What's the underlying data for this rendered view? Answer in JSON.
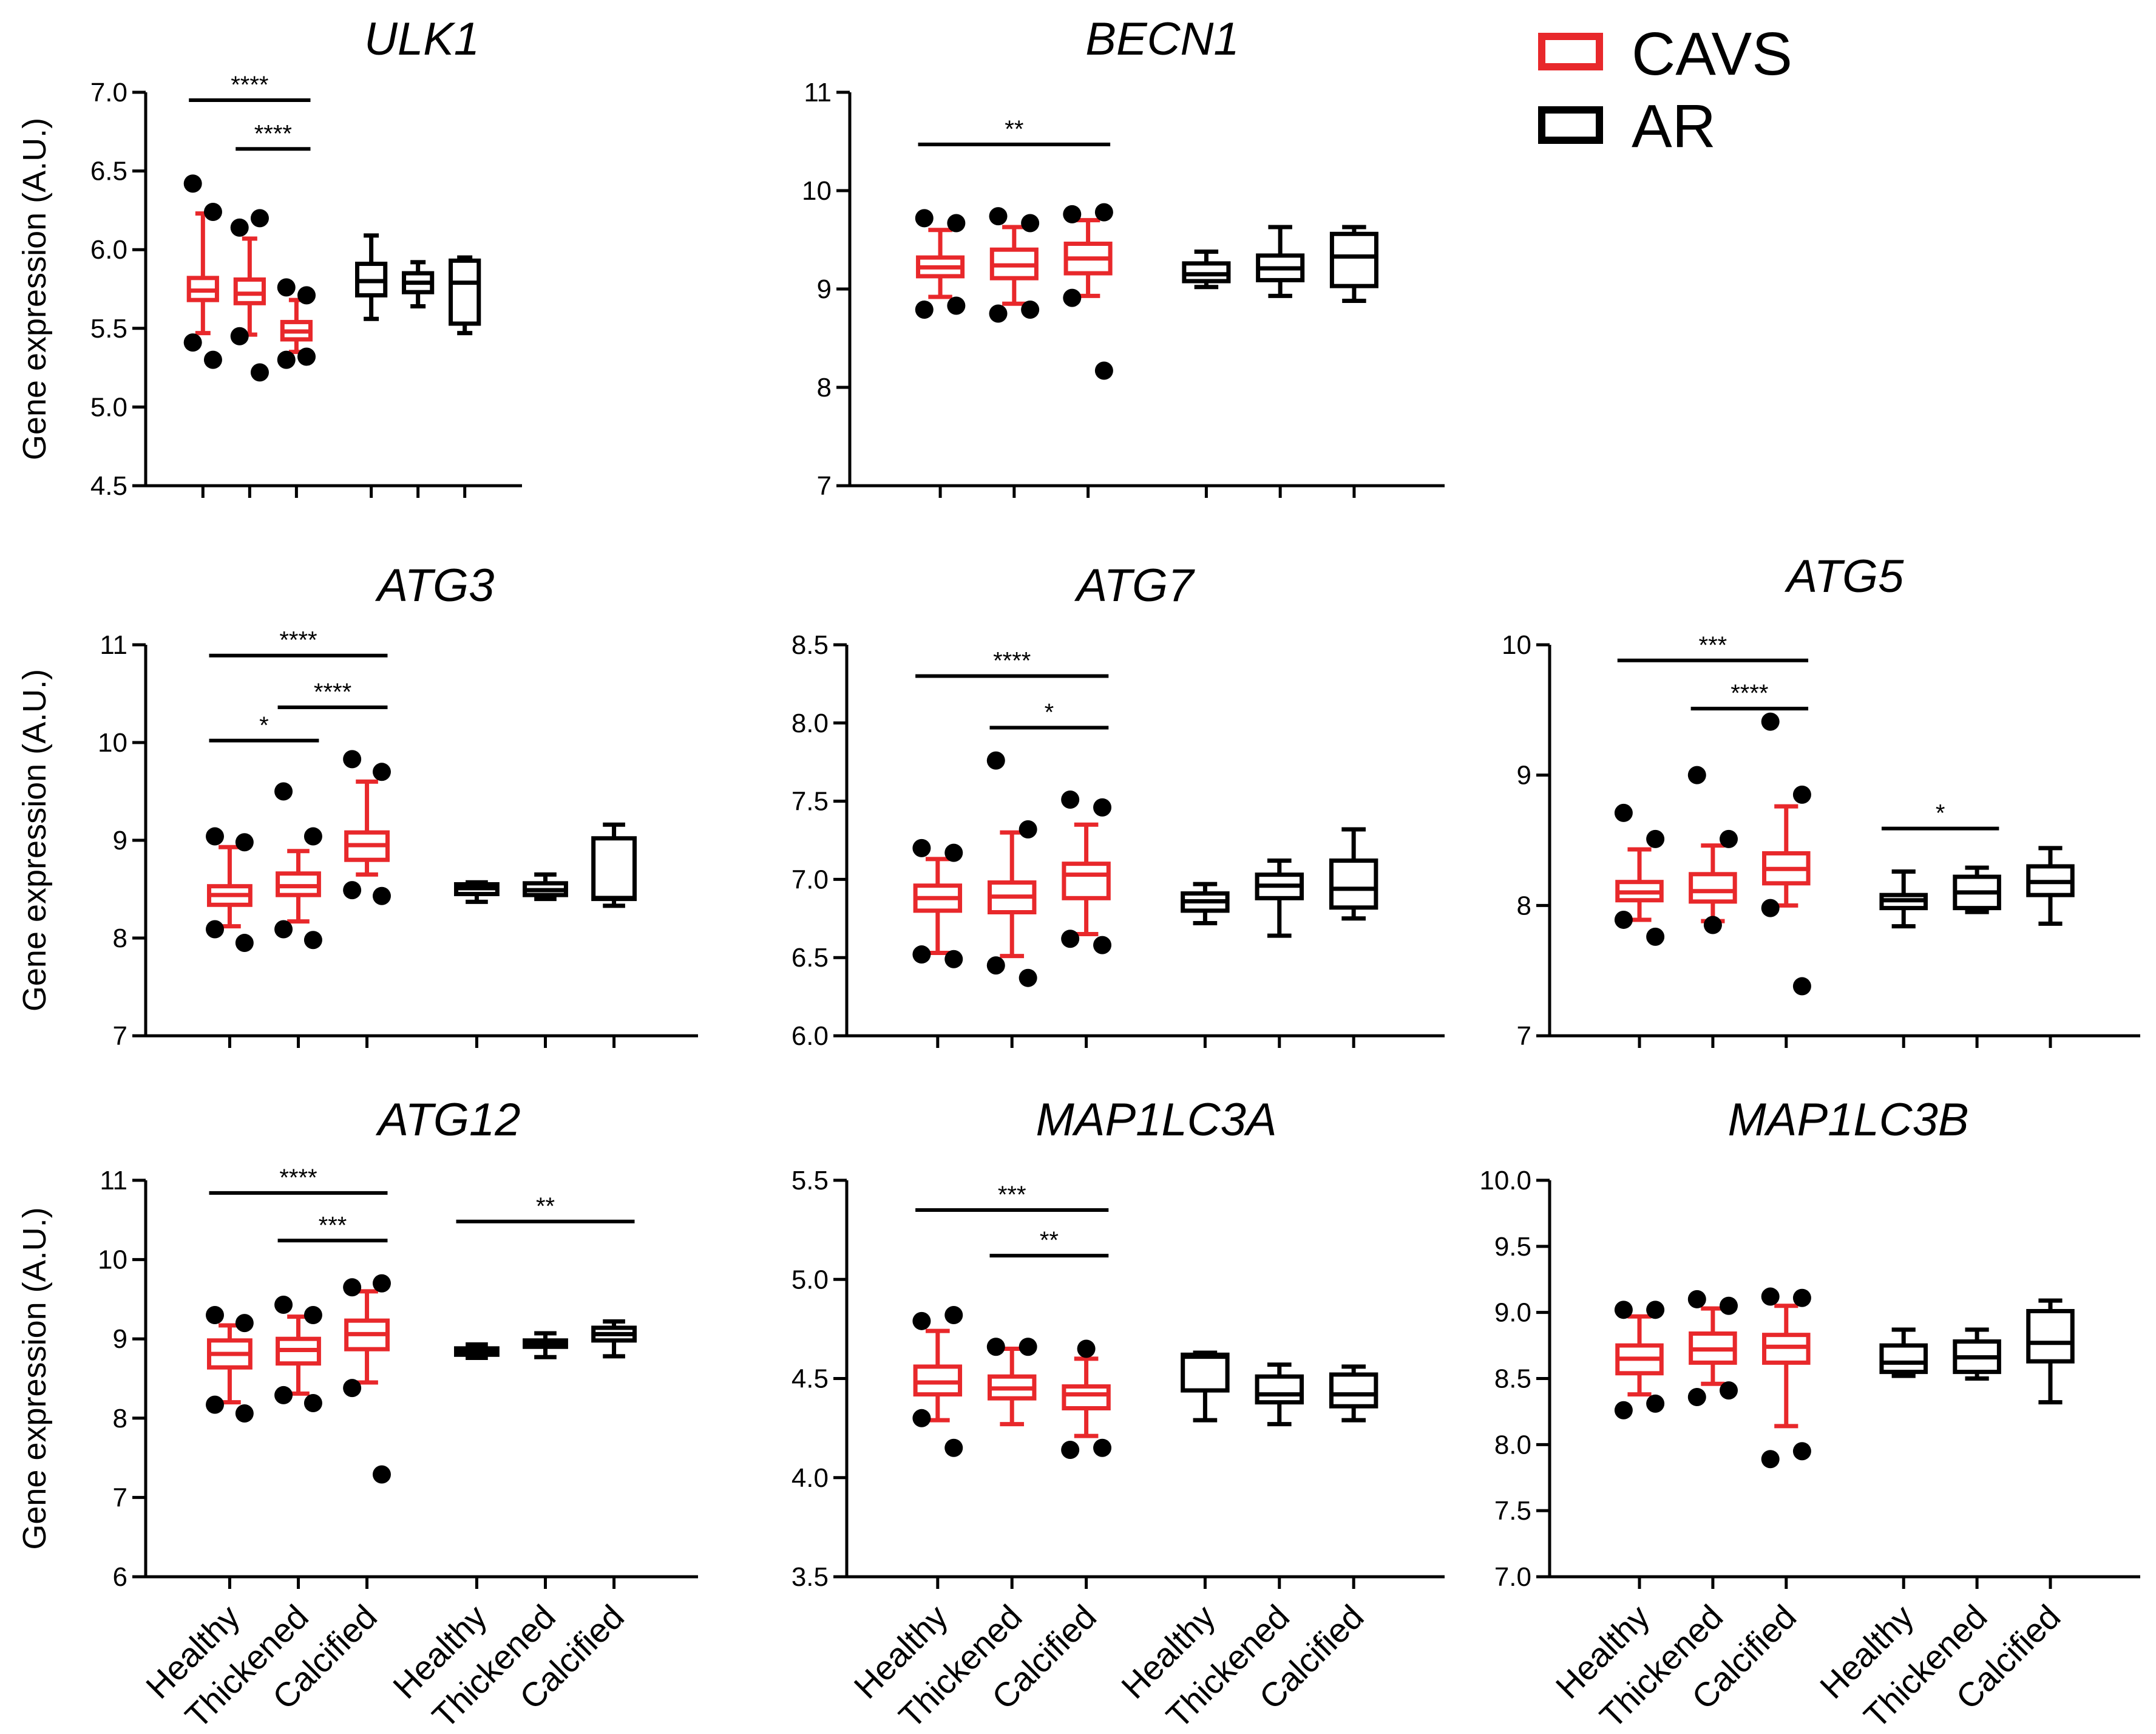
{
  "colors": {
    "cavs": "#e8282b",
    "ar": "#000000",
    "axis": "#000000"
  },
  "legend": {
    "items": [
      {
        "label": "CAVS",
        "color": "#e8282b"
      },
      {
        "label": "AR",
        "color": "#000000"
      }
    ]
  },
  "group_labels": [
    "Healthy",
    "Thickened",
    "Calcified"
  ],
  "y_label": "Gene expression (A.U.)",
  "chart_data": [
    {
      "type": "box",
      "title": "ULK1",
      "ylabel": "Gene expression (A.U.)",
      "ylim": [
        4.5,
        7.0
      ],
      "yticks": [
        4.5,
        5.0,
        5.5,
        6.0,
        6.5,
        7.0
      ],
      "tick_decimals": 1,
      "categories": [
        "Healthy",
        "Thickened",
        "Calcified",
        "Healthy",
        "Thickened",
        "Calcified"
      ],
      "show_xlabels": false,
      "boxes": [
        {
          "group": "CAVS",
          "category": "Healthy",
          "whisker_low": 5.47,
          "q1": 5.68,
          "median": 5.74,
          "q3": 5.82,
          "whisker_high": 6.23,
          "outliers": [
            6.42,
            6.24,
            5.41,
            5.3
          ]
        },
        {
          "group": "CAVS",
          "category": "Thickened",
          "whisker_low": 5.46,
          "q1": 5.66,
          "median": 5.72,
          "q3": 5.81,
          "whisker_high": 6.07,
          "outliers": [
            6.14,
            6.2,
            5.45,
            5.22
          ]
        },
        {
          "group": "CAVS",
          "category": "Calcified",
          "whisker_low": 5.35,
          "q1": 5.43,
          "median": 5.48,
          "q3": 5.54,
          "whisker_high": 5.68,
          "outliers": [
            5.76,
            5.71,
            5.3,
            5.32
          ]
        },
        {
          "group": "AR",
          "category": "Healthy",
          "whisker_low": 5.56,
          "q1": 5.71,
          "median": 5.8,
          "q3": 5.91,
          "whisker_high": 6.09,
          "outliers": []
        },
        {
          "group": "AR",
          "category": "Thickened",
          "whisker_low": 5.64,
          "q1": 5.73,
          "median": 5.79,
          "q3": 5.85,
          "whisker_high": 5.92,
          "outliers": []
        },
        {
          "group": "AR",
          "category": "Calcified",
          "whisker_low": 5.47,
          "q1": 5.53,
          "median": 5.79,
          "q3": 5.93,
          "whisker_high": 5.95,
          "outliers": []
        }
      ],
      "significance": [
        {
          "from": 0,
          "to": 2,
          "y": 6.95,
          "label": "****"
        },
        {
          "from": 1,
          "to": 2,
          "y": 6.64,
          "label": "****"
        }
      ]
    },
    {
      "type": "box",
      "title": "BECN1",
      "ylabel": "",
      "ylim": [
        7,
        11
      ],
      "yticks": [
        7,
        8,
        9,
        10,
        11
      ],
      "tick_decimals": 0,
      "categories": [
        "Healthy",
        "Thickened",
        "Calcified",
        "Healthy",
        "Thickened",
        "Calcified"
      ],
      "show_xlabels": false,
      "boxes": [
        {
          "group": "CAVS",
          "category": "Healthy",
          "whisker_low": 8.92,
          "q1": 9.13,
          "median": 9.22,
          "q3": 9.32,
          "whisker_high": 9.6,
          "outliers": [
            9.72,
            9.67,
            8.79,
            8.83
          ]
        },
        {
          "group": "CAVS",
          "category": "Thickened",
          "whisker_low": 8.85,
          "q1": 9.11,
          "median": 9.24,
          "q3": 9.4,
          "whisker_high": 9.63,
          "outliers": [
            9.74,
            9.67,
            8.75,
            8.79
          ]
        },
        {
          "group": "CAVS",
          "category": "Calcified",
          "whisker_low": 8.93,
          "q1": 9.16,
          "median": 9.31,
          "q3": 9.46,
          "whisker_high": 9.7,
          "outliers": [
            9.76,
            9.78,
            8.91,
            8.17
          ]
        },
        {
          "group": "AR",
          "category": "Healthy",
          "whisker_low": 9.02,
          "q1": 9.08,
          "median": 9.15,
          "q3": 9.26,
          "whisker_high": 9.38,
          "outliers": []
        },
        {
          "group": "AR",
          "category": "Thickened",
          "whisker_low": 8.93,
          "q1": 9.09,
          "median": 9.21,
          "q3": 9.34,
          "whisker_high": 9.63,
          "outliers": []
        },
        {
          "group": "AR",
          "category": "Calcified",
          "whisker_low": 8.88,
          "q1": 9.03,
          "median": 9.33,
          "q3": 9.56,
          "whisker_high": 9.63,
          "outliers": []
        }
      ],
      "significance": [
        {
          "from": 0,
          "to": 2,
          "y": 10.47,
          "label": "**"
        }
      ]
    },
    {
      "type": "box",
      "title": "ATG3",
      "ylabel": "Gene expression (A.U.)",
      "ylim": [
        7,
        11
      ],
      "yticks": [
        7,
        8,
        9,
        10,
        11
      ],
      "tick_decimals": 0,
      "categories": [
        "Healthy",
        "Thickened",
        "Calcified",
        "Healthy",
        "Thickened",
        "Calcified"
      ],
      "show_xlabels": false,
      "boxes": [
        {
          "group": "CAVS",
          "category": "Healthy",
          "whisker_low": 8.12,
          "q1": 8.34,
          "median": 8.44,
          "q3": 8.53,
          "whisker_high": 8.93,
          "outliers": [
            9.04,
            8.98,
            8.09,
            7.95
          ]
        },
        {
          "group": "CAVS",
          "category": "Thickened",
          "whisker_low": 8.17,
          "q1": 8.44,
          "median": 8.53,
          "q3": 8.66,
          "whisker_high": 8.89,
          "outliers": [
            9.5,
            9.04,
            8.09,
            7.98
          ]
        },
        {
          "group": "CAVS",
          "category": "Calcified",
          "whisker_low": 8.65,
          "q1": 8.8,
          "median": 8.95,
          "q3": 9.08,
          "whisker_high": 9.6,
          "outliers": [
            9.83,
            9.7,
            8.49,
            8.43
          ]
        },
        {
          "group": "AR",
          "category": "Healthy",
          "whisker_low": 8.37,
          "q1": 8.45,
          "median": 8.51,
          "q3": 8.55,
          "whisker_high": 8.57,
          "outliers": []
        },
        {
          "group": "AR",
          "category": "Thickened",
          "whisker_low": 8.4,
          "q1": 8.44,
          "median": 8.49,
          "q3": 8.56,
          "whisker_high": 8.65,
          "outliers": []
        },
        {
          "group": "AR",
          "category": "Calcified",
          "whisker_low": 8.33,
          "q1": 8.4,
          "median": 8.41,
          "q3": 9.02,
          "whisker_high": 9.16,
          "outliers": []
        }
      ],
      "significance": [
        {
          "from": 0,
          "to": 2,
          "y": 10.89,
          "label": "****"
        },
        {
          "from": 1,
          "to": 2,
          "y": 10.36,
          "label": "****"
        },
        {
          "from": 0,
          "to": 1,
          "y": 10.02,
          "label": "*"
        }
      ]
    },
    {
      "type": "box",
      "title": "ATG7",
      "ylabel": "",
      "ylim": [
        6.0,
        8.5
      ],
      "yticks": [
        6.0,
        6.5,
        7.0,
        7.5,
        8.0,
        8.5
      ],
      "tick_decimals": 1,
      "categories": [
        "Healthy",
        "Thickened",
        "Calcified",
        "Healthy",
        "Thickened",
        "Calcified"
      ],
      "show_xlabels": false,
      "boxes": [
        {
          "group": "CAVS",
          "category": "Healthy",
          "whisker_low": 6.53,
          "q1": 6.8,
          "median": 6.88,
          "q3": 6.96,
          "whisker_high": 7.13,
          "outliers": [
            7.2,
            7.17,
            6.52,
            6.49
          ]
        },
        {
          "group": "CAVS",
          "category": "Thickened",
          "whisker_low": 6.51,
          "q1": 6.79,
          "median": 6.89,
          "q3": 6.98,
          "whisker_high": 7.3,
          "outliers": [
            7.76,
            7.32,
            6.45,
            6.37
          ]
        },
        {
          "group": "CAVS",
          "category": "Calcified",
          "whisker_low": 6.65,
          "q1": 6.88,
          "median": 7.03,
          "q3": 7.1,
          "whisker_high": 7.35,
          "outliers": [
            7.51,
            7.46,
            6.62,
            6.58
          ]
        },
        {
          "group": "AR",
          "category": "Healthy",
          "whisker_low": 6.72,
          "q1": 6.8,
          "median": 6.86,
          "q3": 6.91,
          "whisker_high": 6.97,
          "outliers": []
        },
        {
          "group": "AR",
          "category": "Thickened",
          "whisker_low": 6.64,
          "q1": 6.88,
          "median": 6.96,
          "q3": 7.03,
          "whisker_high": 7.12,
          "outliers": []
        },
        {
          "group": "AR",
          "category": "Calcified",
          "whisker_low": 6.75,
          "q1": 6.82,
          "median": 6.94,
          "q3": 7.12,
          "whisker_high": 7.32,
          "outliers": []
        }
      ],
      "significance": [
        {
          "from": 0,
          "to": 2,
          "y": 8.3,
          "label": "****"
        },
        {
          "from": 1,
          "to": 2,
          "y": 7.97,
          "label": "*"
        }
      ]
    },
    {
      "type": "box",
      "title": "ATG5",
      "ylabel": "",
      "ylim": [
        7,
        10
      ],
      "yticks": [
        7,
        8,
        9,
        10
      ],
      "tick_decimals": 0,
      "categories": [
        "Healthy",
        "Thickened",
        "Calcified",
        "Healthy",
        "Thickened",
        "Calcified"
      ],
      "show_xlabels": false,
      "boxes": [
        {
          "group": "CAVS",
          "category": "Healthy",
          "whisker_low": 7.89,
          "q1": 8.04,
          "median": 8.1,
          "q3": 8.18,
          "whisker_high": 8.43,
          "outliers": [
            8.71,
            8.51,
            7.89,
            7.76
          ]
        },
        {
          "group": "CAVS",
          "category": "Thickened",
          "whisker_low": 7.88,
          "q1": 8.03,
          "median": 8.11,
          "q3": 8.24,
          "whisker_high": 8.46,
          "outliers": [
            9.0,
            8.51,
            7.85
          ]
        },
        {
          "group": "CAVS",
          "category": "Calcified",
          "whisker_low": 8.0,
          "q1": 8.17,
          "median": 8.28,
          "q3": 8.4,
          "whisker_high": 8.76,
          "outliers": [
            9.41,
            8.85,
            7.98,
            7.38
          ]
        },
        {
          "group": "AR",
          "category": "Healthy",
          "whisker_low": 7.84,
          "q1": 7.98,
          "median": 8.04,
          "q3": 8.08,
          "whisker_high": 8.26,
          "outliers": []
        },
        {
          "group": "AR",
          "category": "Thickened",
          "whisker_low": 7.95,
          "q1": 7.98,
          "median": 8.1,
          "q3": 8.22,
          "whisker_high": 8.29,
          "outliers": []
        },
        {
          "group": "AR",
          "category": "Calcified",
          "whisker_low": 7.86,
          "q1": 8.08,
          "median": 8.18,
          "q3": 8.3,
          "whisker_high": 8.44,
          "outliers": []
        }
      ],
      "significance": [
        {
          "from": 0,
          "to": 2,
          "y": 9.88,
          "label": "***"
        },
        {
          "from": 1,
          "to": 2,
          "y": 9.51,
          "label": "****"
        },
        {
          "from": 3,
          "to": 4,
          "y": 8.59,
          "label": "*"
        }
      ]
    },
    {
      "type": "box",
      "title": "ATG12",
      "ylabel": "Gene expression (A.U.)",
      "ylim": [
        6,
        11
      ],
      "yticks": [
        6,
        7,
        8,
        9,
        10,
        11
      ],
      "tick_decimals": 0,
      "categories": [
        "Healthy",
        "Thickened",
        "Calcified",
        "Healthy",
        "Thickened",
        "Calcified"
      ],
      "show_xlabels": true,
      "boxes": [
        {
          "group": "CAVS",
          "category": "Healthy",
          "whisker_low": 8.2,
          "q1": 8.64,
          "median": 8.81,
          "q3": 8.98,
          "whisker_high": 9.17,
          "outliers": [
            9.3,
            9.2,
            8.17,
            8.06
          ]
        },
        {
          "group": "CAVS",
          "category": "Thickened",
          "whisker_low": 8.31,
          "q1": 8.69,
          "median": 8.86,
          "q3": 9.0,
          "whisker_high": 9.28,
          "outliers": [
            9.43,
            9.3,
            8.29,
            8.19
          ]
        },
        {
          "group": "CAVS",
          "category": "Calcified",
          "whisker_low": 8.45,
          "q1": 8.87,
          "median": 9.06,
          "q3": 9.23,
          "whisker_high": 9.6,
          "outliers": [
            9.65,
            9.7,
            8.38,
            7.29
          ]
        },
        {
          "group": "AR",
          "category": "Healthy",
          "whisker_low": 8.76,
          "q1": 8.8,
          "median": 8.84,
          "q3": 8.88,
          "whisker_high": 8.93,
          "outliers": []
        },
        {
          "group": "AR",
          "category": "Thickened",
          "whisker_low": 8.77,
          "q1": 8.9,
          "median": 8.94,
          "q3": 8.98,
          "whisker_high": 9.07,
          "outliers": []
        },
        {
          "group": "AR",
          "category": "Calcified",
          "whisker_low": 8.78,
          "q1": 8.98,
          "median": 9.06,
          "q3": 9.14,
          "whisker_high": 9.22,
          "outliers": []
        }
      ],
      "significance": [
        {
          "from": 0,
          "to": 2,
          "y": 10.84,
          "label": "****"
        },
        {
          "from": 1,
          "to": 2,
          "y": 10.24,
          "label": "***"
        },
        {
          "from": 3,
          "to": 5,
          "y": 10.48,
          "label": "**"
        }
      ]
    },
    {
      "type": "box",
      "title": "MAP1LC3A",
      "ylabel": "",
      "ylim": [
        3.5,
        5.5
      ],
      "yticks": [
        3.5,
        4.0,
        4.5,
        5.0,
        5.5
      ],
      "tick_decimals": 1,
      "categories": [
        "Healthy",
        "Thickened",
        "Calcified",
        "Healthy",
        "Thickened",
        "Calcified"
      ],
      "show_xlabels": true,
      "boxes": [
        {
          "group": "CAVS",
          "category": "Healthy",
          "whisker_low": 4.29,
          "q1": 4.42,
          "median": 4.48,
          "q3": 4.56,
          "whisker_high": 4.74,
          "outliers": [
            4.79,
            4.82,
            4.3,
            4.15
          ]
        },
        {
          "group": "CAVS",
          "category": "Thickened",
          "whisker_low": 4.27,
          "q1": 4.4,
          "median": 4.45,
          "q3": 4.51,
          "whisker_high": 4.65,
          "outliers": [
            4.66,
            4.66
          ]
        },
        {
          "group": "CAVS",
          "category": "Calcified",
          "whisker_low": 4.21,
          "q1": 4.35,
          "median": 4.42,
          "q3": 4.46,
          "whisker_high": 4.6,
          "outliers": [
            4.65,
            4.14,
            4.15
          ]
        },
        {
          "group": "AR",
          "category": "Healthy",
          "whisker_low": 4.29,
          "q1": 4.44,
          "median": 4.61,
          "q3": 4.62,
          "whisker_high": 4.63,
          "outliers": []
        },
        {
          "group": "AR",
          "category": "Thickened",
          "whisker_low": 4.27,
          "q1": 4.38,
          "median": 4.42,
          "q3": 4.51,
          "whisker_high": 4.57,
          "outliers": []
        },
        {
          "group": "AR",
          "category": "Calcified",
          "whisker_low": 4.29,
          "q1": 4.36,
          "median": 4.42,
          "q3": 4.52,
          "whisker_high": 4.56,
          "outliers": []
        }
      ],
      "significance": [
        {
          "from": 0,
          "to": 2,
          "y": 5.35,
          "label": "***"
        },
        {
          "from": 1,
          "to": 2,
          "y": 5.12,
          "label": "**"
        }
      ]
    },
    {
      "type": "box",
      "title": "MAP1LC3B",
      "ylabel": "",
      "ylim": [
        7.0,
        10.0
      ],
      "yticks": [
        7.0,
        7.5,
        8.0,
        8.5,
        9.0,
        9.5,
        10.0
      ],
      "tick_decimals": 1,
      "categories": [
        "Healthy",
        "Thickened",
        "Calcified",
        "Healthy",
        "Thickened",
        "Calcified"
      ],
      "show_xlabels": true,
      "boxes": [
        {
          "group": "CAVS",
          "category": "Healthy",
          "whisker_low": 8.38,
          "q1": 8.54,
          "median": 8.65,
          "q3": 8.75,
          "whisker_high": 8.97,
          "outliers": [
            9.02,
            9.02,
            8.26,
            8.31
          ]
        },
        {
          "group": "CAVS",
          "category": "Thickened",
          "whisker_low": 8.46,
          "q1": 8.62,
          "median": 8.72,
          "q3": 8.84,
          "whisker_high": 9.03,
          "outliers": [
            9.1,
            9.05,
            8.36,
            8.41
          ]
        },
        {
          "group": "CAVS",
          "category": "Calcified",
          "whisker_low": 8.14,
          "q1": 8.62,
          "median": 8.74,
          "q3": 8.83,
          "whisker_high": 9.05,
          "outliers": [
            9.12,
            9.11,
            7.89,
            7.95
          ]
        },
        {
          "group": "AR",
          "category": "Healthy",
          "whisker_low": 8.52,
          "q1": 8.55,
          "median": 8.62,
          "q3": 8.75,
          "whisker_high": 8.87,
          "outliers": []
        },
        {
          "group": "AR",
          "category": "Thickened",
          "whisker_low": 8.5,
          "q1": 8.55,
          "median": 8.66,
          "q3": 8.78,
          "whisker_high": 8.87,
          "outliers": []
        },
        {
          "group": "AR",
          "category": "Calcified",
          "whisker_low": 8.32,
          "q1": 8.63,
          "median": 8.77,
          "q3": 9.01,
          "whisker_high": 9.09,
          "outliers": []
        }
      ],
      "significance": []
    }
  ]
}
